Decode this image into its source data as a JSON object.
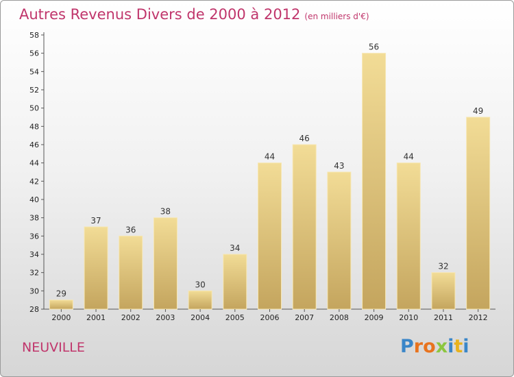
{
  "chart_data": {
    "type": "bar",
    "title": "Autres Revenus Divers de 2000 à 2012",
    "subtitle": "(en milliers d'€)",
    "categories": [
      "2000",
      "2001",
      "2002",
      "2003",
      "2004",
      "2005",
      "2006",
      "2007",
      "2008",
      "2009",
      "2010",
      "2011",
      "2012"
    ],
    "values": [
      29,
      37,
      36,
      38,
      30,
      34,
      44,
      46,
      43,
      56,
      44,
      32,
      49
    ],
    "ylim": [
      28,
      58
    ],
    "yticks": [
      28,
      30,
      32,
      34,
      36,
      38,
      40,
      42,
      44,
      46,
      48,
      50,
      52,
      54,
      56,
      58
    ],
    "grid": false,
    "bar_color": "#e3c77e"
  },
  "footer": {
    "city": "NEUVILLE",
    "logo_letters": [
      "P",
      "r",
      "o",
      "x",
      "i",
      "t",
      "i"
    ],
    "logo_colors": [
      "#3a86c8",
      "#e8731e",
      "#e8731e",
      "#8cc63f",
      "#3a86c8",
      "#e8b21e",
      "#3a86c8"
    ]
  }
}
